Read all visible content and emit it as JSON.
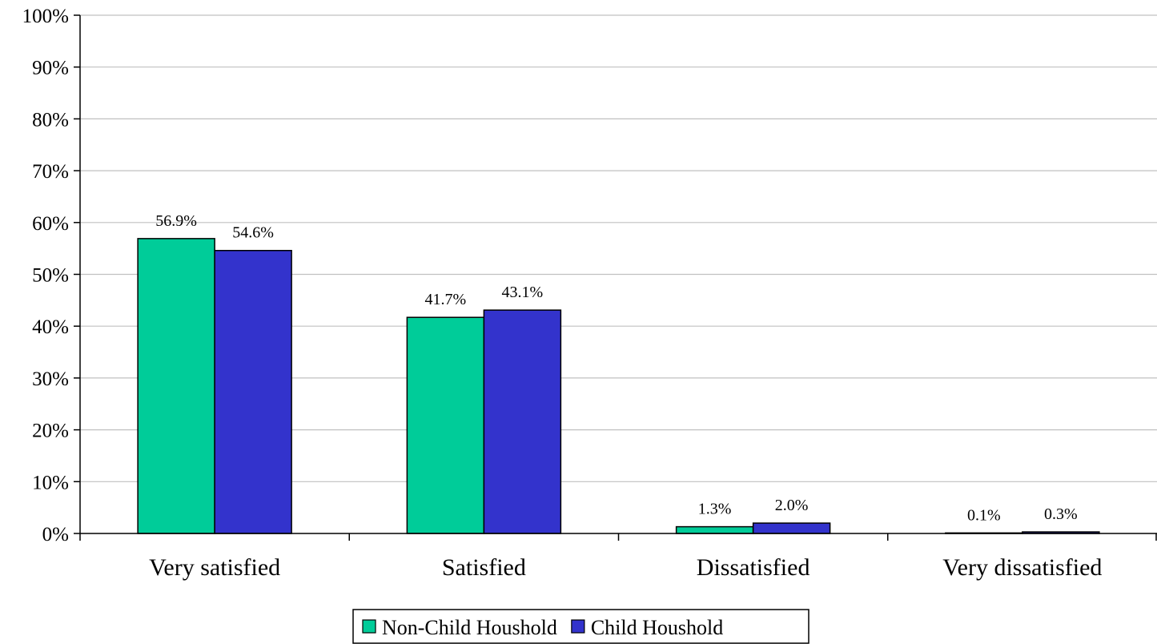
{
  "chart_data": {
    "type": "bar",
    "categories": [
      "Very satisfied",
      "Satisfied",
      "Dissatisfied",
      "Very dissatisfied"
    ],
    "series": [
      {
        "name": "Non-Child Houshold",
        "color": "#00cc99",
        "values": [
          56.9,
          41.7,
          1.3,
          0.1
        ],
        "labels": [
          "56.9%",
          "41.7%",
          "1.3%",
          "0.1%"
        ]
      },
      {
        "name": "Child Houshold",
        "color": "#3333cc",
        "values": [
          54.6,
          43.1,
          2.0,
          0.3
        ],
        "labels": [
          "54.6%",
          "43.1%",
          "2.0%",
          "0.3%"
        ]
      }
    ],
    "ylim": [
      0,
      100
    ],
    "yticks": [
      0,
      10,
      20,
      30,
      40,
      50,
      60,
      70,
      80,
      90,
      100
    ],
    "ytick_labels": [
      "0%",
      "10%",
      "20%",
      "30%",
      "40%",
      "50%",
      "60%",
      "70%",
      "80%",
      "90%",
      "100%"
    ],
    "title": "",
    "xlabel": "",
    "ylabel": "",
    "grid": true,
    "legend_position": "bottom-center"
  }
}
